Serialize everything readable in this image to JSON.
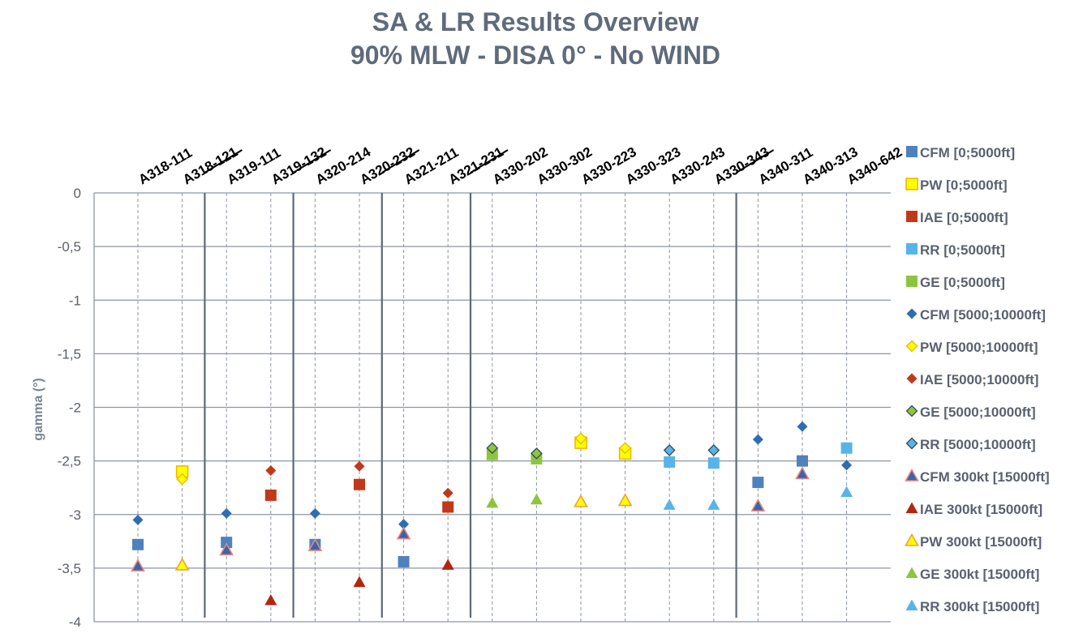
{
  "chart_data": {
    "type": "scatter",
    "title": [
      "SA & LR Results Overview",
      "90% MLW - DISA 0° - No WIND"
    ],
    "ylabel": "gamma (°)",
    "xlabel": "",
    "ylim": [
      -4,
      0
    ],
    "y_ticks": [
      "0",
      "-0,5",
      "-1",
      "-1,5",
      "-2",
      "-2,5",
      "-3",
      "-3,5",
      "-4"
    ],
    "categories": [
      "A318-111",
      "A318-121",
      "A319-111",
      "A319-132",
      "A320-214",
      "A320-232",
      "A321-211",
      "A321-231",
      "A330-202",
      "A330-302",
      "A330-223",
      "A330-323",
      "A330-243",
      "A330-343",
      "A340-311",
      "A340-313",
      "A340-642"
    ],
    "group_separators_after": [
      "A318-121",
      "A319-132",
      "A320-232",
      "A321-231",
      "A330-343"
    ],
    "grid": true,
    "legend_position": "right",
    "series": [
      {
        "name": "CFM [0;5000ft]",
        "marker": "square",
        "color": "#4f81bd",
        "values": [
          -3.28,
          null,
          -3.26,
          null,
          -3.28,
          null,
          -3.44,
          null,
          null,
          null,
          null,
          null,
          null,
          null,
          -2.7,
          -2.5,
          null
        ]
      },
      {
        "name": "PW [0;5000ft]",
        "marker": "square",
        "color": "#ffff00",
        "edge": "#f0b400",
        "values": [
          null,
          -2.6,
          null,
          null,
          null,
          null,
          null,
          null,
          null,
          null,
          -2.33,
          -2.43,
          null,
          null,
          null,
          null,
          null
        ]
      },
      {
        "name": "IAE [0;5000ft]",
        "marker": "square",
        "color": "#c0391b",
        "values": [
          null,
          null,
          null,
          -2.82,
          null,
          -2.72,
          null,
          -2.93,
          null,
          null,
          null,
          null,
          null,
          null,
          null,
          null,
          null
        ]
      },
      {
        "name": "RR [0;5000ft]",
        "marker": "square",
        "color": "#56b4e9",
        "values": [
          null,
          null,
          null,
          null,
          null,
          null,
          null,
          null,
          null,
          null,
          null,
          null,
          -2.51,
          -2.52,
          null,
          null,
          -2.38
        ]
      },
      {
        "name": "GE [0;5000ft]",
        "marker": "square",
        "color": "#8cc63f",
        "values": [
          null,
          null,
          null,
          null,
          null,
          null,
          null,
          null,
          -2.44,
          -2.48,
          null,
          null,
          null,
          null,
          null,
          null,
          null
        ]
      },
      {
        "name": "CFM [5000;10000ft]",
        "marker": "diamond",
        "color": "#2e6db4",
        "values": [
          -3.05,
          null,
          -2.99,
          null,
          -2.99,
          null,
          -3.09,
          null,
          null,
          null,
          null,
          null,
          null,
          null,
          -2.3,
          -2.18,
          -2.54
        ]
      },
      {
        "name": "PW [5000;10000ft]",
        "marker": "diamond",
        "color": "#ffff00",
        "edge": "#f0b400",
        "values": [
          null,
          -2.67,
          null,
          null,
          null,
          null,
          null,
          null,
          null,
          null,
          -2.29,
          -2.38,
          null,
          null,
          null,
          null,
          null
        ]
      },
      {
        "name": "IAE [5000;10000ft]",
        "marker": "diamond",
        "color": "#c0391b",
        "values": [
          null,
          null,
          null,
          -2.59,
          null,
          -2.55,
          null,
          -2.8,
          null,
          null,
          null,
          null,
          null,
          null,
          null,
          null,
          null
        ]
      },
      {
        "name": "GE [5000;10000ft]",
        "marker": "diamond",
        "color": "#8cc63f",
        "edge": "#34495e",
        "values": [
          null,
          null,
          null,
          null,
          null,
          null,
          null,
          null,
          -2.38,
          -2.43,
          null,
          null,
          null,
          null,
          null,
          null,
          null
        ]
      },
      {
        "name": "RR [5000;10000ft]",
        "marker": "diamond",
        "color": "#56b4e9",
        "edge": "#34495e",
        "values": [
          null,
          null,
          null,
          null,
          null,
          null,
          null,
          null,
          null,
          null,
          null,
          null,
          -2.4,
          -2.4,
          null,
          null,
          null
        ]
      },
      {
        "name": "CFM 300kt [15000ft]",
        "marker": "triangle",
        "color": "#3a64b0",
        "edge": "#e8877a",
        "values": [
          -3.48,
          null,
          -3.33,
          null,
          -3.29,
          null,
          -3.18,
          null,
          null,
          null,
          null,
          null,
          null,
          null,
          -2.92,
          -2.62,
          null
        ]
      },
      {
        "name": "IAE 300kt [15000ft]",
        "marker": "triangle",
        "color": "#b3260f",
        "values": [
          null,
          null,
          null,
          -3.8,
          null,
          -3.63,
          null,
          -3.47,
          null,
          null,
          null,
          null,
          null,
          null,
          null,
          null,
          null
        ]
      },
      {
        "name": "PW 300kt [15000ft]",
        "marker": "triangle",
        "color": "#ffff00",
        "edge": "#f0a030",
        "values": [
          null,
          -3.47,
          null,
          null,
          null,
          null,
          null,
          null,
          null,
          null,
          -2.88,
          -2.87,
          null,
          null,
          null,
          null,
          null
        ]
      },
      {
        "name": "GE 300kt [15000ft]",
        "marker": "triangle",
        "color": "#8cc63f",
        "values": [
          null,
          null,
          null,
          null,
          null,
          null,
          null,
          null,
          -2.89,
          -2.86,
          null,
          null,
          null,
          null,
          null,
          null,
          null
        ]
      },
      {
        "name": "RR 300kt [15000ft]",
        "marker": "triangle",
        "color": "#56b4e9",
        "values": [
          null,
          null,
          null,
          null,
          null,
          null,
          null,
          null,
          null,
          null,
          null,
          null,
          -2.91,
          -2.91,
          null,
          null,
          -2.79
        ]
      }
    ]
  }
}
